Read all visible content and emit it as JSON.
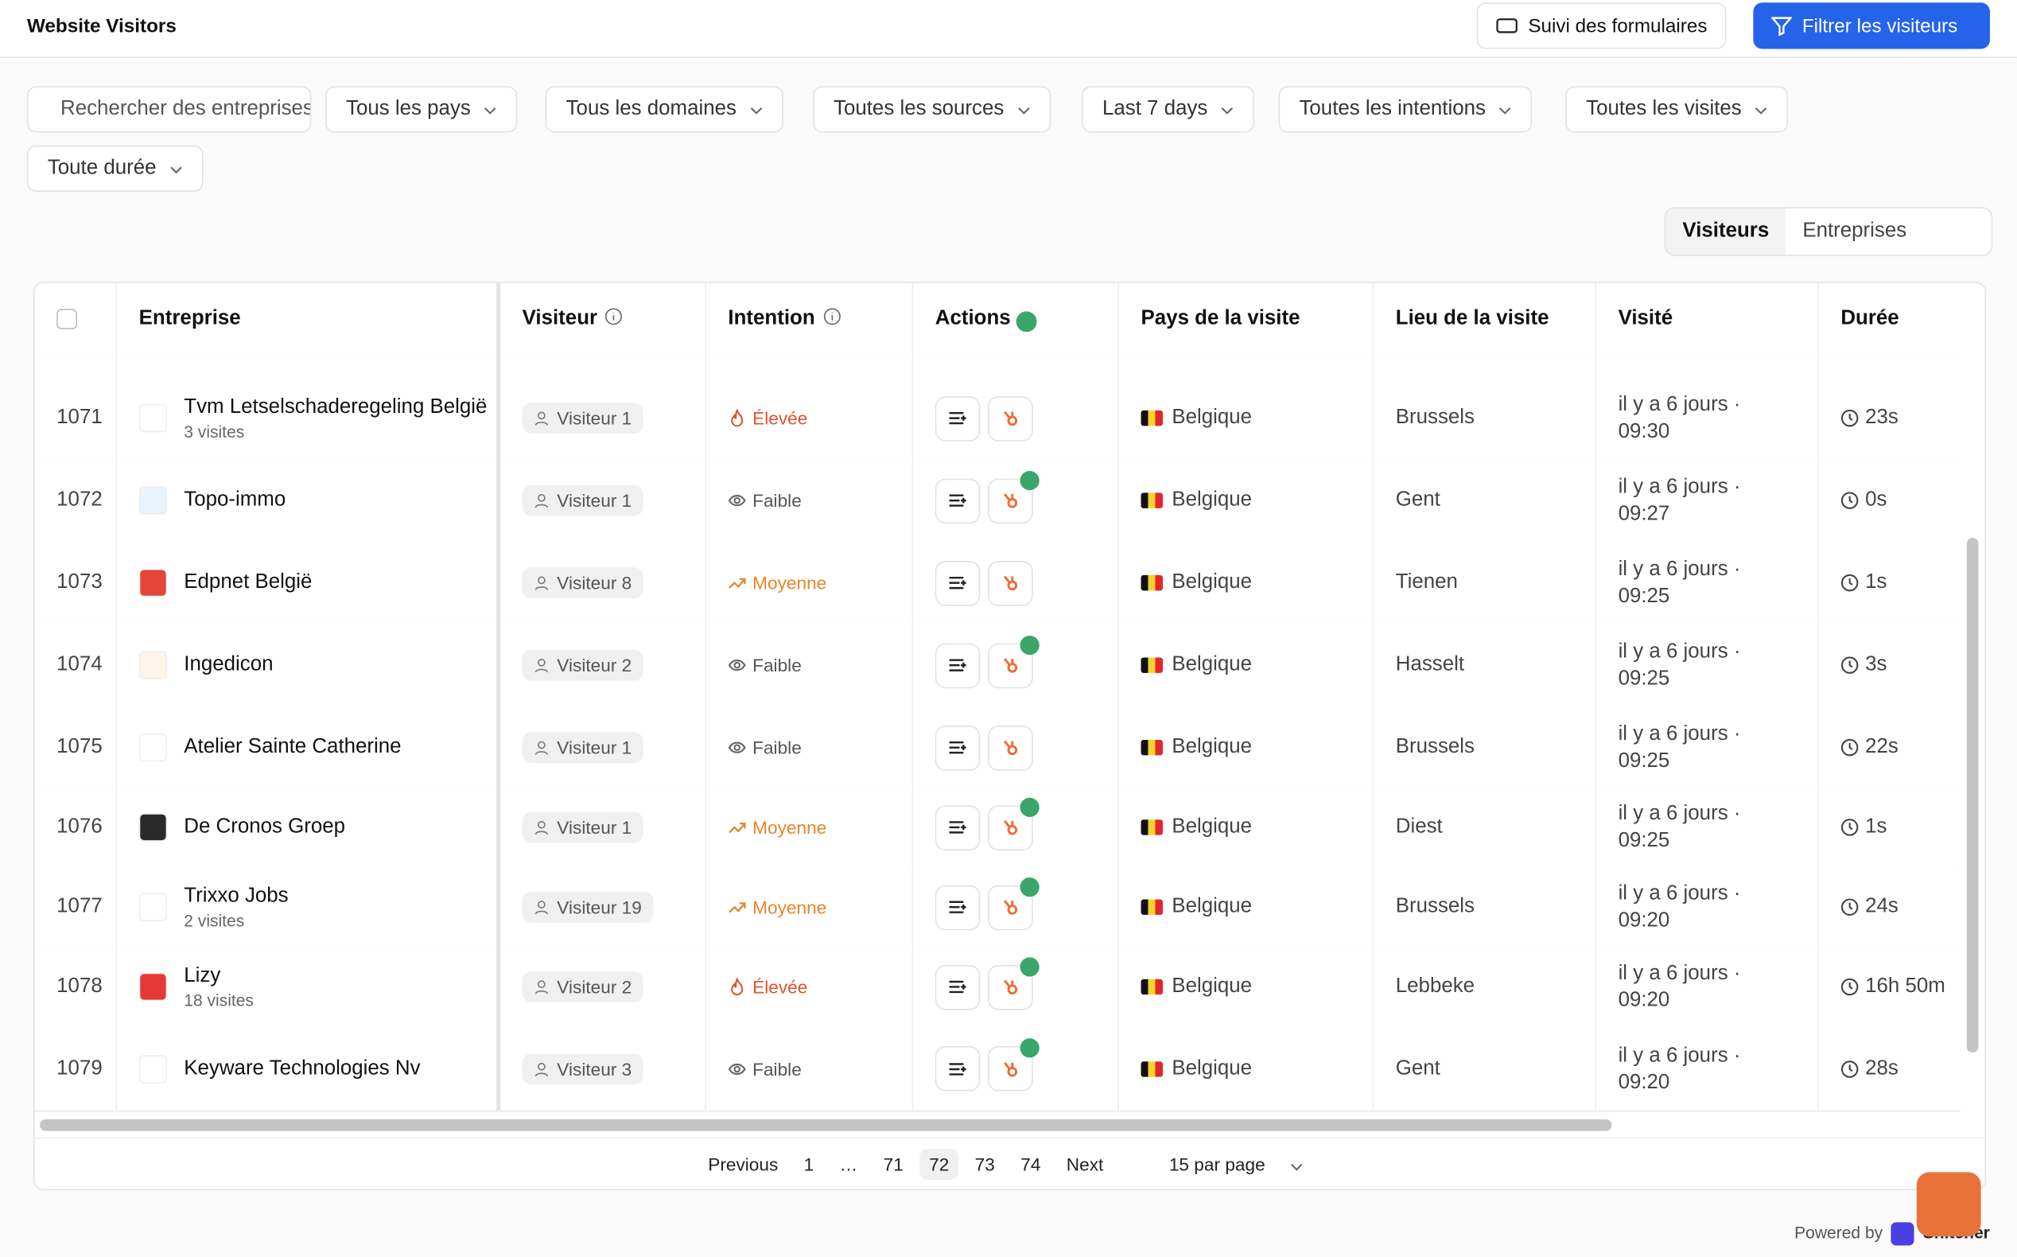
{
  "header": {
    "title": "Website Visitors",
    "forms_button": "Suivi des formulaires",
    "filter_button": "Filtrer les visiteurs"
  },
  "filters": {
    "search_placeholder": "Rechercher des entreprises",
    "dropdowns": [
      "Tous les pays",
      "Tous les domaines",
      "Toutes les sources",
      "Last 7 days",
      "Toutes les intentions",
      "Toutes les visites",
      "Toute durée"
    ]
  },
  "view_toggle": {
    "visitors": "Visiteurs",
    "companies": "Entreprises"
  },
  "table": {
    "columns": [
      "Entreprise",
      "Visiteur",
      "Intention",
      "Actions",
      "Pays de la visite",
      "Lieu de la visite",
      "Visité",
      "Durée"
    ],
    "rows": [
      {
        "id": "1071",
        "company": "Tvm Letselschaderegeling België",
        "visits": "3 visites",
        "visitor": "Visiteur 1",
        "intention": "Élevée",
        "hubspot_synced": false,
        "country": "Belgique",
        "city": "Brussels",
        "visited": "il y a 6 jours · 09:30",
        "duration": "23s"
      },
      {
        "id": "1072",
        "company": "Topo-immo",
        "visitor": "Visiteur 1",
        "intention": "Faible",
        "hubspot_synced": true,
        "country": "Belgique",
        "city": "Gent",
        "visited": "il y a 6 jours · 09:27",
        "duration": "0s"
      },
      {
        "id": "1073",
        "company": "Edpnet België",
        "visitor": "Visiteur 8",
        "intention": "Moyenne",
        "hubspot_synced": false,
        "country": "Belgique",
        "city": "Tienen",
        "visited": "il y a 6 jours · 09:25",
        "duration": "1s"
      },
      {
        "id": "1074",
        "company": "Ingedicon",
        "visitor": "Visiteur 2",
        "intention": "Faible",
        "hubspot_synced": true,
        "country": "Belgique",
        "city": "Hasselt",
        "visited": "il y a 6 jours · 09:25",
        "duration": "3s"
      },
      {
        "id": "1075",
        "company": "Atelier Sainte Catherine",
        "visitor": "Visiteur 1",
        "intention": "Faible",
        "hubspot_synced": false,
        "country": "Belgique",
        "city": "Brussels",
        "visited": "il y a 6 jours · 09:25",
        "duration": "22s"
      },
      {
        "id": "1076",
        "company": "De Cronos Groep",
        "visitor": "Visiteur 1",
        "intention": "Moyenne",
        "hubspot_synced": true,
        "country": "Belgique",
        "city": "Diest",
        "visited": "il y a 6 jours · 09:25",
        "duration": "1s"
      },
      {
        "id": "1077",
        "company": "Trixxo Jobs",
        "visits": "2 visites",
        "visitor": "Visiteur 19",
        "intention": "Moyenne",
        "hubspot_synced": true,
        "country": "Belgique",
        "city": "Brussels",
        "visited": "il y a 6 jours · 09:20",
        "duration": "24s"
      },
      {
        "id": "1078",
        "company": "Lizy",
        "visits": "18 visites",
        "visitor": "Visiteur 2",
        "intention": "Élevée",
        "hubspot_synced": true,
        "country": "Belgique",
        "city": "Lebbeke",
        "visited": "il y a 6 jours · 09:20",
        "duration": "16h 50m"
      },
      {
        "id": "1079",
        "company": "Keyware Technologies Nv",
        "visitor": "Visiteur 3",
        "intention": "Faible",
        "hubspot_synced": true,
        "country": "Belgique",
        "city": "Gent",
        "visited": "il y a 6 jours · 09:20",
        "duration": "28s"
      }
    ]
  },
  "pagination": {
    "previous": "Previous",
    "pages": [
      "1",
      "…",
      "71",
      "72",
      "73",
      "74"
    ],
    "current": "72",
    "next": "Next",
    "per_page": "15 par page"
  },
  "footer": {
    "powered_by": "Powered by",
    "brand": "Snitcher"
  }
}
